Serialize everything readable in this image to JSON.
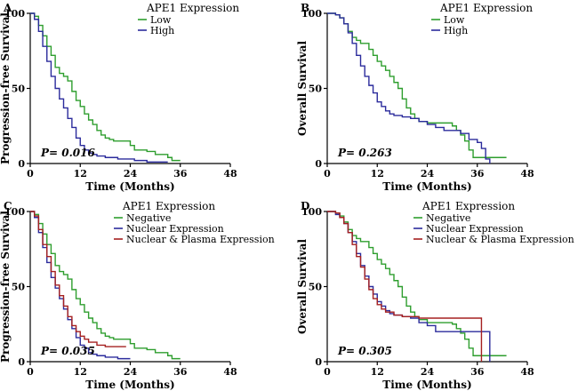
{
  "chart_data": [
    {
      "type": "line",
      "panel": "A",
      "title": "",
      "xlabel": "Time (Months)",
      "ylabel": "Progression-free Survival",
      "xlim": [
        0,
        48
      ],
      "ylim": [
        0,
        100
      ],
      "xticks": [
        0,
        12,
        24,
        36,
        48
      ],
      "yticks": [
        0,
        50,
        100
      ],
      "legend_title": "APE1 Expression",
      "p_value": "P= 0.016",
      "series": [
        {
          "name": "Low",
          "color": "#2e9e2e",
          "x": [
            0,
            1,
            2,
            3,
            4,
            5,
            6,
            7,
            8,
            9,
            10,
            11,
            12,
            13,
            14,
            15,
            16,
            17,
            18,
            19,
            20,
            24,
            25,
            28,
            30,
            33,
            34,
            36
          ],
          "y": [
            100,
            98,
            92,
            85,
            78,
            72,
            64,
            60,
            58,
            55,
            48,
            42,
            38,
            33,
            29,
            26,
            22,
            19,
            17,
            16,
            15,
            12,
            9,
            8,
            6,
            4,
            2,
            2
          ]
        },
        {
          "name": "High",
          "color": "#2b2b9c",
          "x": [
            0,
            1,
            2,
            3,
            4,
            5,
            6,
            7,
            8,
            9,
            10,
            11,
            12,
            13,
            14,
            15,
            16,
            18,
            21,
            24,
            25,
            28,
            33
          ],
          "y": [
            100,
            96,
            88,
            78,
            68,
            58,
            50,
            43,
            37,
            30,
            24,
            17,
            12,
            9,
            7,
            6,
            5,
            4,
            3,
            3,
            2,
            1,
            1
          ]
        }
      ]
    },
    {
      "type": "line",
      "panel": "B",
      "title": "",
      "xlabel": "Time (Months)",
      "ylabel": "Overall Survival",
      "xlim": [
        0,
        48
      ],
      "ylim": [
        0,
        100
      ],
      "xticks": [
        0,
        12,
        24,
        36,
        48
      ],
      "yticks": [
        0,
        50,
        100
      ],
      "legend_title": "APE1 Expression",
      "p_value": "P= 0.263",
      "series": [
        {
          "name": "Low",
          "color": "#2e9e2e",
          "x": [
            0,
            2,
            3,
            4,
            5,
            6,
            7,
            8,
            10,
            11,
            12,
            13,
            14,
            15,
            16,
            17,
            18,
            19,
            20,
            21,
            22,
            24,
            26,
            28,
            30,
            31,
            32,
            33,
            34,
            35,
            42,
            43
          ],
          "y": [
            100,
            99,
            97,
            93,
            88,
            84,
            82,
            80,
            76,
            72,
            68,
            65,
            62,
            58,
            54,
            50,
            43,
            37,
            33,
            30,
            28,
            27,
            27,
            27,
            25,
            22,
            19,
            15,
            9,
            4,
            4,
            4
          ]
        },
        {
          "name": "High",
          "color": "#2b2b9c",
          "x": [
            0,
            2,
            3,
            4,
            5,
            6,
            7,
            8,
            9,
            10,
            11,
            12,
            13,
            14,
            15,
            16,
            17,
            18,
            20,
            22,
            24,
            26,
            28,
            30,
            32,
            34,
            36,
            37,
            38,
            39
          ],
          "y": [
            100,
            99,
            97,
            93,
            87,
            80,
            72,
            65,
            58,
            52,
            47,
            41,
            38,
            35,
            33,
            32,
            32,
            31,
            30,
            28,
            26,
            24,
            22,
            22,
            20,
            16,
            14,
            10,
            3,
            0
          ]
        }
      ]
    },
    {
      "type": "line",
      "panel": "C",
      "title": "",
      "xlabel": "Time (Months)",
      "ylabel": "Progression-free Survival",
      "xlim": [
        0,
        48
      ],
      "ylim": [
        0,
        100
      ],
      "xticks": [
        0,
        12,
        24,
        36,
        48
      ],
      "yticks": [
        0,
        50,
        100
      ],
      "legend_title": "APE1 Expression",
      "p_value": "P= 0.035",
      "series": [
        {
          "name": "Negative",
          "color": "#2e9e2e",
          "x": [
            0,
            1,
            2,
            3,
            4,
            5,
            6,
            7,
            8,
            9,
            10,
            11,
            12,
            13,
            14,
            15,
            16,
            17,
            18,
            19,
            20,
            24,
            25,
            28,
            30,
            33,
            34,
            36
          ],
          "y": [
            100,
            98,
            92,
            85,
            78,
            72,
            64,
            60,
            58,
            55,
            48,
            42,
            38,
            33,
            29,
            26,
            22,
            19,
            17,
            16,
            15,
            12,
            9,
            8,
            6,
            4,
            2,
            2
          ]
        },
        {
          "name": "Nuclear Expression",
          "color": "#2b2b9c",
          "x": [
            0,
            1,
            2,
            3,
            4,
            5,
            6,
            7,
            8,
            9,
            10,
            11,
            12,
            13,
            14,
            15,
            16,
            18,
            21,
            24
          ],
          "y": [
            100,
            96,
            86,
            76,
            66,
            56,
            49,
            42,
            35,
            28,
            22,
            16,
            11,
            9,
            6,
            5,
            4,
            3,
            2,
            2
          ]
        },
        {
          "name": "Nuclear & Plasma Expression",
          "color": "#a52020",
          "x": [
            0,
            1,
            2,
            3,
            4,
            5,
            6,
            7,
            8,
            9,
            10,
            11,
            12,
            13,
            14,
            16,
            18,
            20,
            22,
            23
          ],
          "y": [
            100,
            97,
            88,
            78,
            70,
            60,
            51,
            44,
            37,
            30,
            24,
            20,
            17,
            15,
            13,
            11,
            10,
            10,
            10,
            10
          ]
        }
      ]
    },
    {
      "type": "line",
      "panel": "D",
      "title": "",
      "xlabel": "Time (Months)",
      "ylabel": "Overall Survival",
      "xlim": [
        0,
        48
      ],
      "ylim": [
        0,
        100
      ],
      "xticks": [
        0,
        12,
        24,
        36,
        48
      ],
      "yticks": [
        0,
        50,
        100
      ],
      "legend_title": "APE1 Expression",
      "p_value": "P= 0.305",
      "series": [
        {
          "name": "Negative",
          "color": "#2e9e2e",
          "x": [
            0,
            2,
            3,
            4,
            5,
            6,
            7,
            8,
            10,
            11,
            12,
            13,
            14,
            15,
            16,
            17,
            18,
            19,
            20,
            21,
            22,
            24,
            26,
            28,
            30,
            31,
            32,
            33,
            34,
            35,
            42,
            43
          ],
          "y": [
            100,
            99,
            97,
            93,
            88,
            84,
            82,
            80,
            76,
            72,
            68,
            65,
            62,
            58,
            54,
            50,
            43,
            37,
            33,
            30,
            28,
            26,
            26,
            26,
            25,
            22,
            19,
            15,
            9,
            4,
            4,
            4
          ]
        },
        {
          "name": "Nuclear Expression",
          "color": "#2b2b9c",
          "x": [
            0,
            2,
            3,
            4,
            5,
            6,
            7,
            8,
            9,
            10,
            11,
            12,
            13,
            14,
            15,
            16,
            18,
            20,
            22,
            24,
            26,
            28,
            30,
            32,
            34,
            36,
            38,
            39
          ],
          "y": [
            100,
            98,
            96,
            92,
            86,
            80,
            72,
            64,
            57,
            50,
            45,
            40,
            37,
            34,
            32,
            31,
            30,
            29,
            26,
            24,
            20,
            20,
            20,
            20,
            20,
            20,
            20,
            0
          ]
        },
        {
          "name": "Nuclear & Plasma Expression",
          "color": "#a52020",
          "x": [
            0,
            2,
            3,
            4,
            5,
            6,
            7,
            8,
            9,
            10,
            11,
            12,
            13,
            14,
            16,
            18,
            20,
            22,
            24,
            26,
            28,
            30,
            32,
            34,
            36,
            37
          ],
          "y": [
            100,
            99,
            96,
            92,
            86,
            78,
            70,
            63,
            55,
            48,
            42,
            38,
            35,
            33,
            31,
            30,
            30,
            29,
            29,
            29,
            29,
            29,
            29,
            29,
            29,
            0
          ]
        }
      ]
    }
  ]
}
